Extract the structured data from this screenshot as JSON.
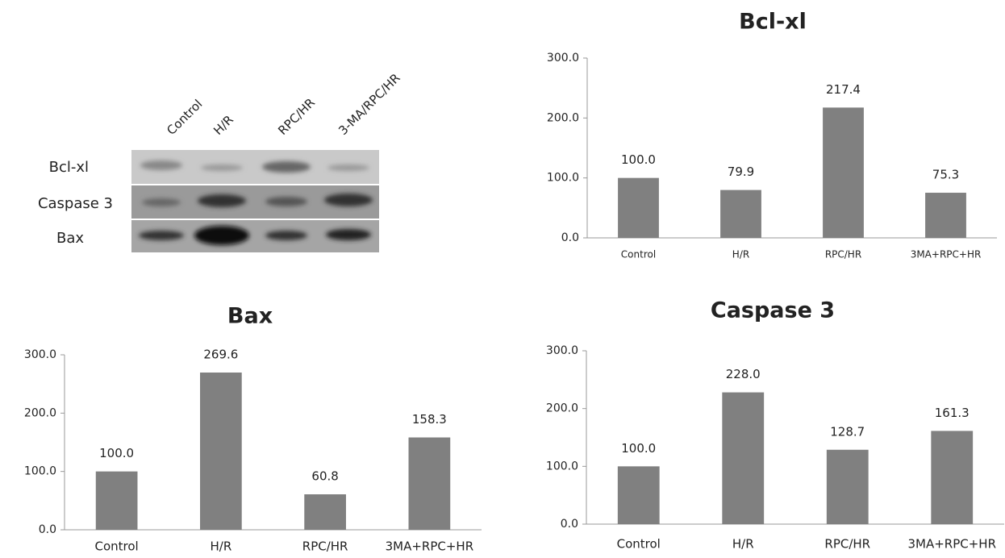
{
  "blot": {
    "lanes": [
      "Control",
      "H/R",
      "RPC/HR",
      "3-MA/RPC/HR"
    ],
    "rows": [
      "Bcl-xl",
      "Caspase 3",
      "Bax"
    ]
  },
  "chart_data": [
    {
      "type": "bar",
      "title": "Bcl-xl",
      "categories": [
        "Control",
        "H/R",
        "RPC/HR",
        "3MA+RPC+HR"
      ],
      "values": [
        100.0,
        79.9,
        217.4,
        75.3
      ],
      "value_labels": [
        "100.0",
        "79.9",
        "217.4",
        "75.3"
      ],
      "color": "#808080",
      "ylim": [
        0,
        300
      ],
      "yticks": [
        {
          "value": 0,
          "label": "0.0"
        },
        {
          "value": 100,
          "label": "100.0"
        },
        {
          "value": 200,
          "label": "200.0"
        },
        {
          "value": 300,
          "label": "300.0"
        }
      ],
      "grid": false
    },
    {
      "type": "bar",
      "title": "Bax",
      "categories": [
        "Control",
        "H/R",
        "RPC/HR",
        "3MA+RPC+HR"
      ],
      "values": [
        100.0,
        269.6,
        60.8,
        158.3
      ],
      "value_labels": [
        "100.0",
        "269.6",
        "60.8",
        "158.3"
      ],
      "color": "#808080",
      "ylim": [
        0,
        300
      ],
      "yticks": [
        {
          "value": 0,
          "label": "0.0"
        },
        {
          "value": 100,
          "label": "100.0"
        },
        {
          "value": 200,
          "label": "200.0"
        },
        {
          "value": 300,
          "label": "300.0"
        }
      ],
      "grid": false
    },
    {
      "type": "bar",
      "title": "Caspase 3",
      "categories": [
        "Control",
        "H/R",
        "RPC/HR",
        "3MA+RPC+HR"
      ],
      "values": [
        100.0,
        228.0,
        128.7,
        161.3
      ],
      "value_labels": [
        "100.0",
        "228.0",
        "128.7",
        "161.3"
      ],
      "color": "#808080",
      "ylim": [
        0,
        300
      ],
      "yticks": [
        {
          "value": 0,
          "label": "0.0"
        },
        {
          "value": 100,
          "label": "100.0"
        },
        {
          "value": 200,
          "label": "200.0"
        },
        {
          "value": 300,
          "label": "300.0"
        }
      ],
      "grid": false
    }
  ]
}
